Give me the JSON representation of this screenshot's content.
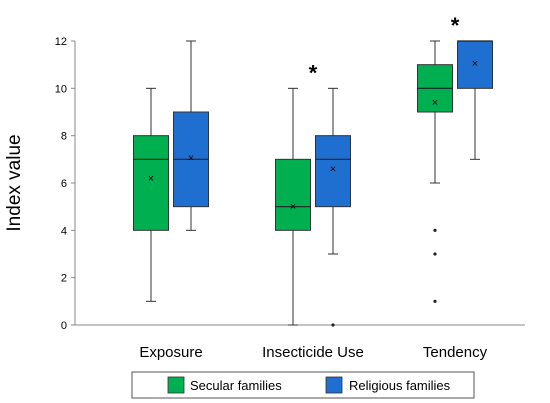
{
  "chart_data": {
    "type": "box",
    "ylabel": "Index value",
    "ylim": [
      0,
      12
    ],
    "yticks": [
      0,
      2,
      4,
      6,
      8,
      10,
      12
    ],
    "grid": false,
    "categories": [
      "Exposure",
      "Insecticide Use",
      "Tendency"
    ],
    "significance_marker": "*",
    "significant_categories": [
      "Insecticide Use",
      "Tendency"
    ],
    "legend_position": "bottom",
    "series": [
      {
        "name": "Secular families",
        "color": "#00b050",
        "boxes": [
          {
            "category": "Exposure",
            "whisker_low": 1,
            "q1": 4,
            "median": 7,
            "q3": 8,
            "whisker_high": 10,
            "mean": 6.2,
            "outliers": []
          },
          {
            "category": "Insecticide Use",
            "whisker_low": 0,
            "q1": 4,
            "median": 5,
            "q3": 7,
            "whisker_high": 10,
            "mean": 5.0,
            "outliers": []
          },
          {
            "category": "Tendency",
            "whisker_low": 6,
            "q1": 9,
            "median": 10,
            "q3": 11,
            "whisker_high": 12,
            "mean": 9.4,
            "outliers": [
              4,
              3,
              1
            ]
          }
        ]
      },
      {
        "name": "Religious families",
        "color": "#1f6fd0",
        "boxes": [
          {
            "category": "Exposure",
            "whisker_low": 4,
            "q1": 5,
            "median": 7,
            "q3": 9,
            "whisker_high": 12,
            "mean": 7.05,
            "outliers": []
          },
          {
            "category": "Insecticide Use",
            "whisker_low": 3,
            "q1": 5,
            "median": 7,
            "q3": 8,
            "whisker_high": 10,
            "mean": 6.6,
            "outliers": [
              0
            ]
          },
          {
            "category": "Tendency",
            "whisker_low": 7,
            "q1": 10,
            "median": 12,
            "q3": 12,
            "whisker_high": 12,
            "mean": 11.05,
            "outliers": []
          }
        ]
      }
    ]
  }
}
